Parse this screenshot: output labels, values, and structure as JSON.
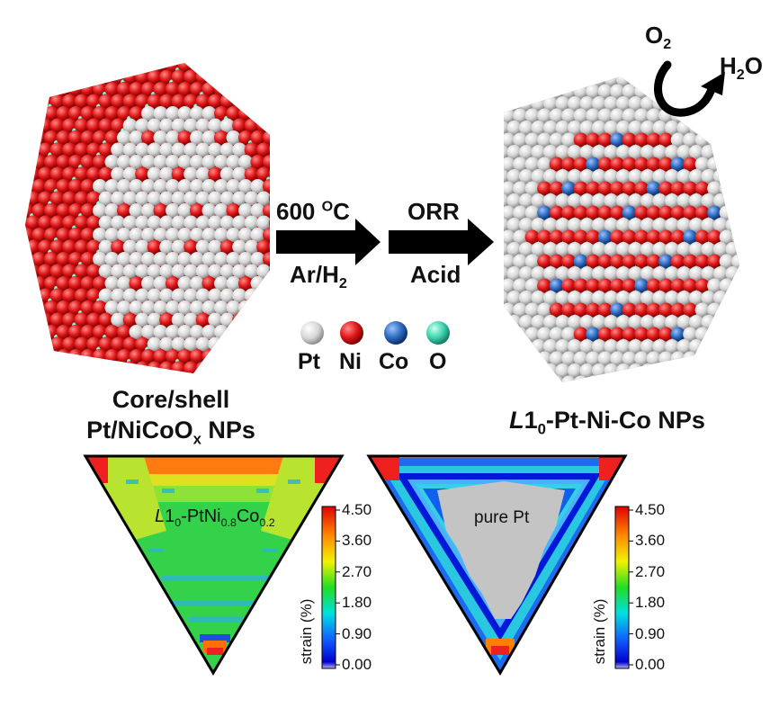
{
  "colors": {
    "pt": "#d2d2d2",
    "ni": "#e01818",
    "co": "#2f6cc0",
    "o": "#3fd4b0",
    "arrow": "#000000"
  },
  "left_np": {
    "label_line1": "Core/shell",
    "label_line2_main": "Pt/NiCoO",
    "label_line2_sub": "x",
    "label_line2_tail": " NPs"
  },
  "right_np": {
    "label_italic": "L",
    "label_one": "1",
    "label_sub": "0",
    "label_tail": "-Pt-Ni-Co NPs"
  },
  "reaction": {
    "o2_main": "O",
    "o2_sub": "2",
    "h2o_h": "H",
    "h2o_sub": "2",
    "h2o_o": "O"
  },
  "step1": {
    "temp": "600 ",
    "temp_sup": "O",
    "temp_unit": "C",
    "gas_main": "Ar/H",
    "gas_sub": "2"
  },
  "step2": {
    "top": "ORR",
    "bottom": "Acid"
  },
  "legend": [
    {
      "label": "Pt",
      "color": "#d2d2d2"
    },
    {
      "label": "Ni",
      "color": "#e01818"
    },
    {
      "label": "Co",
      "color": "#2f6cc0"
    },
    {
      "label": "O",
      "color": "#3fd4b0"
    }
  ],
  "strain_map_left": {
    "label_italic": "L",
    "label_1": "1",
    "label_sub0": "0",
    "label_a": "-PtNi",
    "label_sub1": "0.8",
    "label_b": "Co",
    "label_sub2": "0.2"
  },
  "strain_map_right": {
    "label": "pure Pt"
  },
  "colorbar": {
    "axis_label": "strain (%)",
    "ticks": [
      "4.50",
      "3.60",
      "2.70",
      "1.80",
      "0.90",
      "0.00"
    ]
  }
}
